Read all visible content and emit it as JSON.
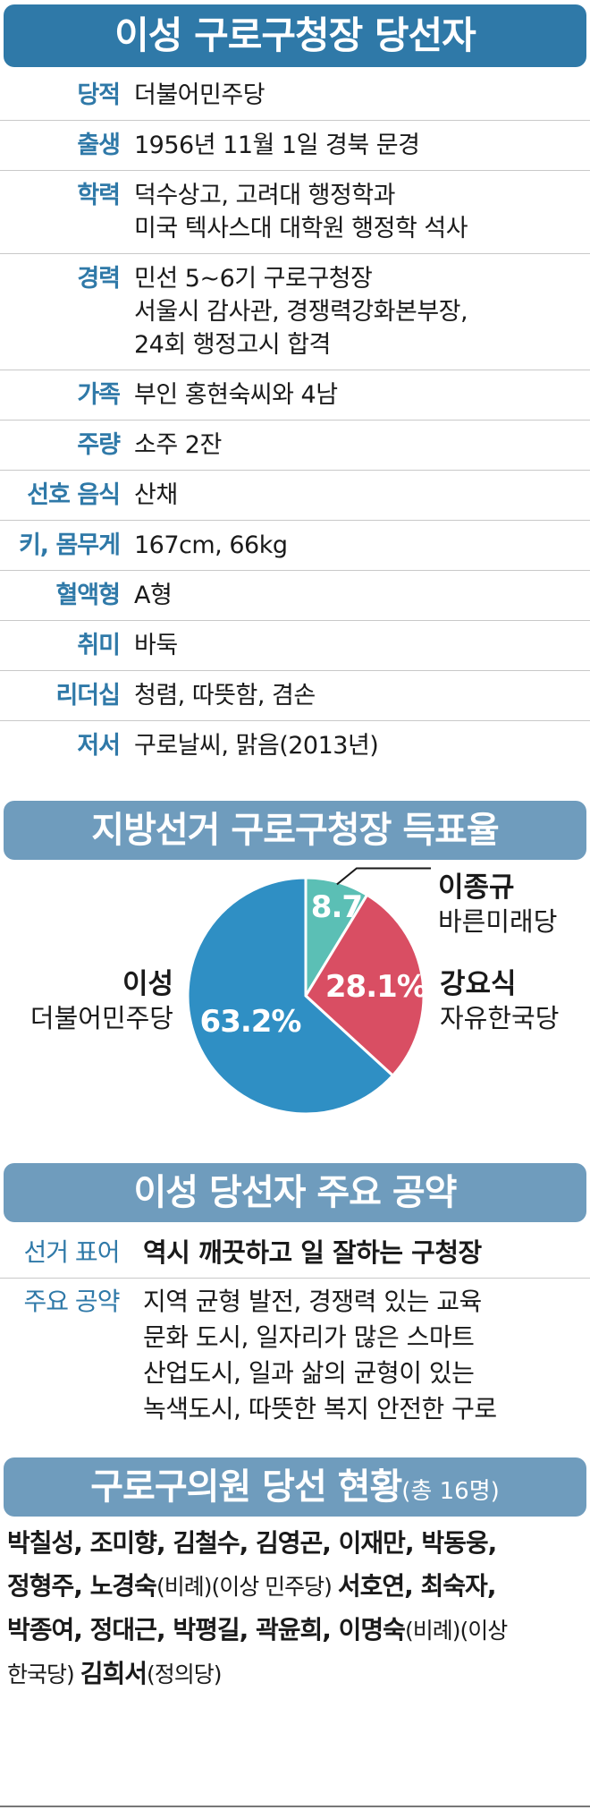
{
  "profile": {
    "title": "이성 구로구청장 당선자",
    "rows": [
      {
        "key": "당적",
        "value": "더불어민주당"
      },
      {
        "key": "출생",
        "value": "1956년 11월 1일 경북 문경"
      },
      {
        "key": "학력",
        "value": "덕수상고, 고려대 행정학과\n미국 텍사스대 대학원 행정학 석사"
      },
      {
        "key": "경력",
        "value": "민선 5~6기 구로구청장\n서울시 감사관, 경쟁력강화본부장,\n24회 행정고시 합격"
      },
      {
        "key": "가족",
        "value": "부인 홍현숙씨와 4남"
      },
      {
        "key": "주량",
        "value": "소주 2잔"
      },
      {
        "key": "선호 음식",
        "value": "산채"
      },
      {
        "key": "키, 몸무게",
        "value": "167cm, 66kg"
      },
      {
        "key": "혈액형",
        "value": "A형"
      },
      {
        "key": "취미",
        "value": "바둑"
      },
      {
        "key": "리더십",
        "value": "청렴, 따뜻함, 겸손"
      },
      {
        "key": "저서",
        "value": "구로날씨, 맑음(2013년)"
      }
    ]
  },
  "vote": {
    "title": "지방선거 구로구청장 득표율"
  },
  "chart_data": {
    "type": "pie",
    "slices": [
      {
        "candidate": "이종규",
        "party": "바른미래당",
        "value": 8.7,
        "label": "8.7",
        "color": "#5bbfb5"
      },
      {
        "candidate": "강요식",
        "party": "자유한국당",
        "value": 28.1,
        "label": "28.1%",
        "color": "#d94e63"
      },
      {
        "candidate": "이성",
        "party": "더불어민주당",
        "value": 63.2,
        "label": "63.2%",
        "color": "#2f8fc4"
      }
    ]
  },
  "pledges": {
    "title": "이성 당선자 주요 공약",
    "slogan_key": "선거 표어",
    "slogan": "역시 깨끗하고 일 잘하는 구청장",
    "main_key": "주요 공약",
    "main": "지역 균형 발전, 경쟁력 있는 교육\n문화 도시, 일자리가 많은 스마트\n산업도시, 일과 삶의 균형이 있는\n녹색도시, 따뜻한 복지 안전한 구로"
  },
  "council": {
    "title": "구로구의원 당선 현황",
    "count": "(총 16명)",
    "lines": [
      [
        {
          "t": "박칠성, 조미향, 김철수, 김영곤, 이재만, 박동웅,",
          "b": true
        }
      ],
      [
        {
          "t": "정형주, 노경숙",
          "b": true
        },
        {
          "t": "(비례)(이상 민주당) ",
          "b": false
        },
        {
          "t": "서호연, 최숙자,",
          "b": true
        }
      ],
      [
        {
          "t": "박종여, 정대근, 박평길, 곽윤희, 이명숙",
          "b": true
        },
        {
          "t": "(비례)(이상",
          "b": false
        }
      ],
      [
        {
          "t": "한국당) ",
          "b": false
        },
        {
          "t": "김희서",
          "b": true
        },
        {
          "t": "(정의당)",
          "b": false
        }
      ]
    ]
  }
}
